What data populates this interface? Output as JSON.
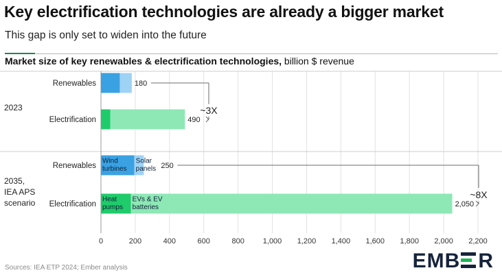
{
  "header": {
    "title": "Key electrification technologies are already a bigger market",
    "subtitle": "This gap is only set to widen into the future",
    "chart_heading": "Market size of key renewables & electrification technologies,",
    "chart_unit": " billion $ revenue"
  },
  "footer": {
    "source": "Sources: IEA ETP 2024; Ember analysis",
    "logo_left": "EMB",
    "logo_right": "R"
  },
  "colors": {
    "renewables_dark": "#3aa1e3",
    "renewables_light": "#9fd3f5",
    "electrification_dark": "#1fcb6a",
    "electrification_light": "#8de8b6",
    "grid": "#e2e2e2",
    "divider": "#cccccc",
    "arrow": "#6b6b6b",
    "axis_text": "#333333"
  },
  "chart_data": {
    "type": "bar",
    "orientation": "horizontal",
    "stacked": true,
    "xlim": [
      0,
      2200
    ],
    "x_ticks": [
      0,
      200,
      400,
      600,
      800,
      1000,
      1200,
      1400,
      1600,
      1800,
      2000,
      2200
    ],
    "x_tick_labels": [
      "0",
      "200",
      "400",
      "600",
      "800",
      "1,000",
      "1,200",
      "1,400",
      "1,600",
      "1,800",
      "2,000",
      "2,200"
    ],
    "grid": true,
    "groups": [
      {
        "label": "2023",
        "rows": [
          {
            "category": "Renewables",
            "total": 180,
            "total_label": "180",
            "segments": [
              {
                "name": "",
                "value": 110,
                "shade": "dark"
              },
              {
                "name": "",
                "value": 70,
                "shade": "light"
              }
            ]
          },
          {
            "category": "Electrification",
            "total": 490,
            "total_label": "490",
            "segments": [
              {
                "name": "",
                "value": 55,
                "shade": "dark"
              },
              {
                "name": "",
                "value": 435,
                "shade": "light"
              }
            ]
          }
        ],
        "multiplier_label": "~3X"
      },
      {
        "label": "2035, IEA APS scenario",
        "label_lines": [
          "2035,",
          "IEA APS",
          "scenario"
        ],
        "rows": [
          {
            "category": "Renewables",
            "total": 250,
            "total_label": "250",
            "segments": [
              {
                "name": "Wind turbines",
                "name_lines": [
                  "Wind",
                  "turbines"
                ],
                "value": 195,
                "shade": "dark"
              },
              {
                "name": "Solar panels",
                "name_lines": [
                  "Solar",
                  "panels"
                ],
                "value": 55,
                "shade": "light"
              }
            ]
          },
          {
            "category": "Electrification",
            "total": 2050,
            "total_label": "2,050",
            "segments": [
              {
                "name": "Heat pumps",
                "name_lines": [
                  "Heat",
                  "pumps"
                ],
                "value": 175,
                "shade": "dark"
              },
              {
                "name": "EVs & EV batteries",
                "name_lines": [
                  "EVs & EV",
                  "batteries"
                ],
                "value": 1875,
                "shade": "light"
              }
            ]
          }
        ],
        "multiplier_label": "~8X"
      }
    ]
  }
}
